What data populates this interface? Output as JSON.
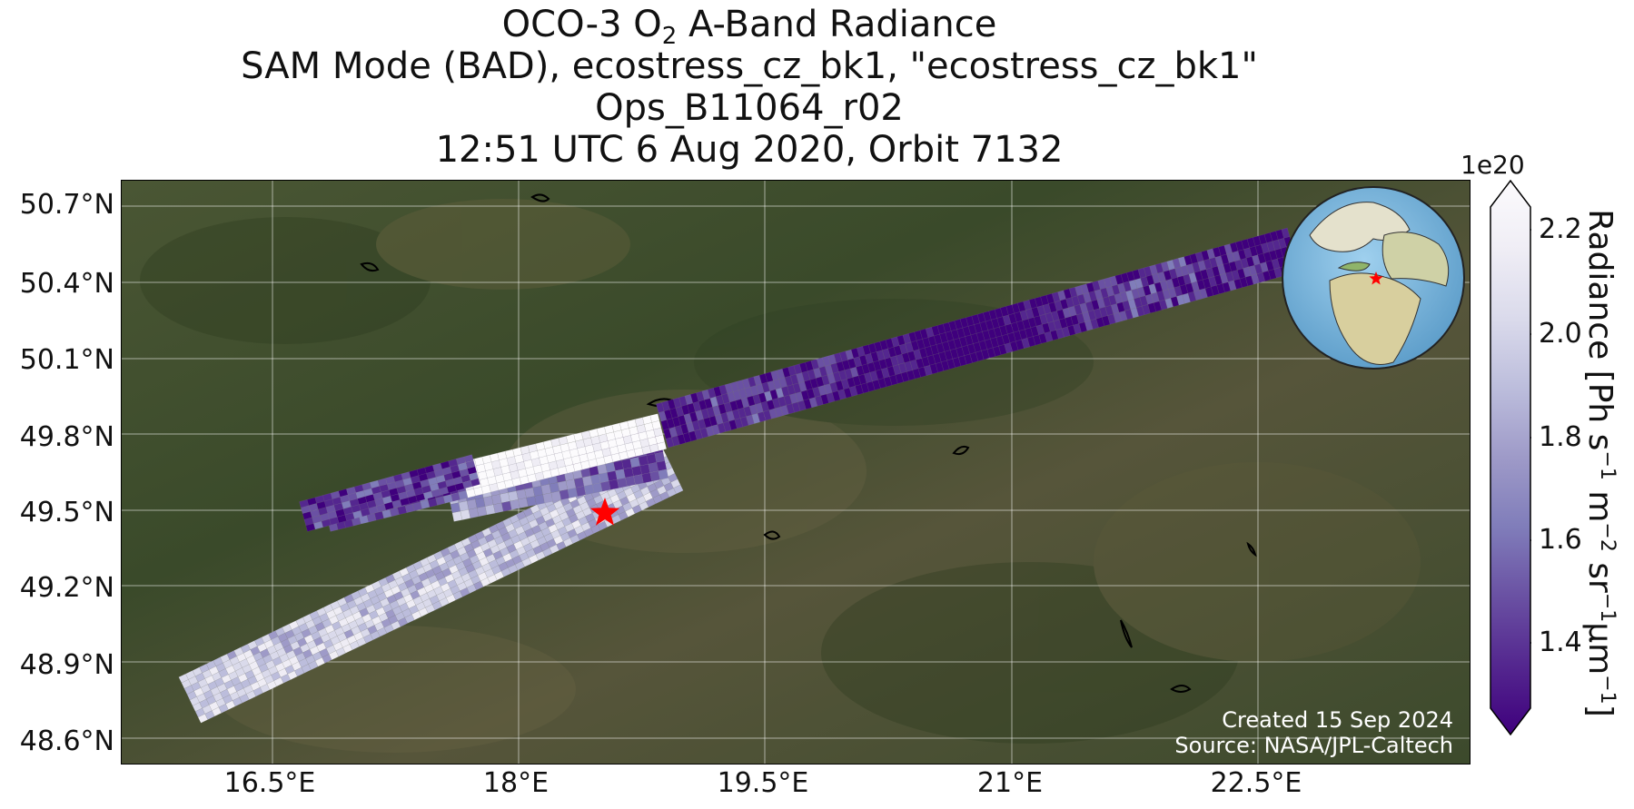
{
  "title": {
    "line1_pre": "OCO-3 O",
    "line1_sub": "2",
    "line1_post": " A-Band Radiance",
    "line2": "SAM Mode (BAD), ecostress_cz_bk1, \"ecostress_cz_bk1\"",
    "line3": "Ops_B11064_r02",
    "line4": "12:51 UTC 6 Aug 2020, Orbit 7132"
  },
  "map": {
    "y_ticks": [
      "50.7°N",
      "50.4°N",
      "50.1°N",
      "49.8°N",
      "49.5°N",
      "49.2°N",
      "48.9°N",
      "48.6°N"
    ],
    "x_ticks": [
      "16.5°E",
      "18°E",
      "19.5°E",
      "21°E",
      "22.5°E"
    ],
    "credit_created": "Created 15 Sep 2024",
    "credit_source": "Source: NASA/JPL-Caltech",
    "colors": {
      "background": "#3f4a2c",
      "grid": "#ffffff",
      "target_star": "#ff0000"
    }
  },
  "colorbar": {
    "exponent": "1e20",
    "ticks": [
      "2.2",
      "2.0",
      "1.8",
      "1.6",
      "1.4"
    ],
    "label_parts": [
      "Radiance [Ph s",
      "−1",
      " m",
      "−2",
      " sr",
      "−1",
      "µm",
      "−1",
      "]"
    ],
    "colors": [
      "#3f007d",
      "#54278f",
      "#6a51a3",
      "#807dba",
      "#9e9ac8",
      "#bcbddc",
      "#dadaeb",
      "#efedf5",
      "#fcfbfd"
    ]
  }
}
